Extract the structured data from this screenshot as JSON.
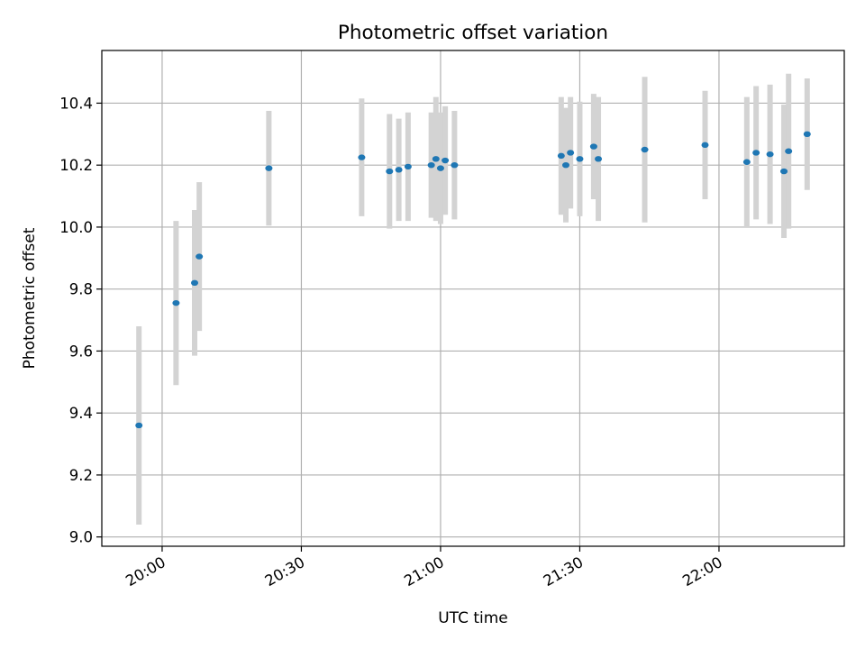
{
  "chart_data": {
    "type": "scatter",
    "title": "Photometric offset variation",
    "xlabel": "UTC time",
    "ylabel": "Photometric offset",
    "x_ticks": [
      "20:00",
      "20:30",
      "21:00",
      "21:30",
      "22:00"
    ],
    "y_ticks": [
      "9.0",
      "9.2",
      "9.4",
      "9.6",
      "9.8",
      "10.0",
      "10.2",
      "10.4"
    ],
    "xlim": [
      "19:47",
      "22:27"
    ],
    "ylim": [
      8.97,
      10.57
    ],
    "grid": true,
    "colors": {
      "marker": "#1f77b4",
      "errorbar": "#d3d3d3",
      "grid": "#b0b0b0"
    },
    "points": [
      {
        "time": "19:55",
        "y": 9.36,
        "err": 0.32
      },
      {
        "time": "20:03",
        "y": 9.755,
        "err": 0.265
      },
      {
        "time": "20:07",
        "y": 9.82,
        "err": 0.235
      },
      {
        "time": "20:08",
        "y": 9.905,
        "err": 0.24
      },
      {
        "time": "20:23",
        "y": 10.19,
        "err": 0.185
      },
      {
        "time": "20:43",
        "y": 10.225,
        "err": 0.19
      },
      {
        "time": "20:49",
        "y": 10.18,
        "err": 0.185
      },
      {
        "time": "20:51",
        "y": 10.185,
        "err": 0.165
      },
      {
        "time": "20:53",
        "y": 10.195,
        "err": 0.175
      },
      {
        "time": "20:58",
        "y": 10.2,
        "err": 0.17
      },
      {
        "time": "20:59",
        "y": 10.22,
        "err": 0.2
      },
      {
        "time": "21:00",
        "y": 10.19,
        "err": 0.18
      },
      {
        "time": "21:01",
        "y": 10.215,
        "err": 0.175
      },
      {
        "time": "21:03",
        "y": 10.2,
        "err": 0.175
      },
      {
        "time": "21:26",
        "y": 10.23,
        "err": 0.19
      },
      {
        "time": "21:27",
        "y": 10.2,
        "err": 0.185
      },
      {
        "time": "21:28",
        "y": 10.24,
        "err": 0.18
      },
      {
        "time": "21:30",
        "y": 10.22,
        "err": 0.185
      },
      {
        "time": "21:33",
        "y": 10.26,
        "err": 0.17
      },
      {
        "time": "21:34",
        "y": 10.22,
        "err": 0.2
      },
      {
        "time": "21:44",
        "y": 10.25,
        "err": 0.235
      },
      {
        "time": "21:57",
        "y": 10.265,
        "err": 0.175
      },
      {
        "time": "22:06",
        "y": 10.21,
        "err": 0.21
      },
      {
        "time": "22:08",
        "y": 10.24,
        "err": 0.215
      },
      {
        "time": "22:11",
        "y": 10.235,
        "err": 0.225
      },
      {
        "time": "22:14",
        "y": 10.18,
        "err": 0.215
      },
      {
        "time": "22:15",
        "y": 10.245,
        "err": 0.25
      },
      {
        "time": "22:19",
        "y": 10.3,
        "err": 0.18
      }
    ]
  }
}
